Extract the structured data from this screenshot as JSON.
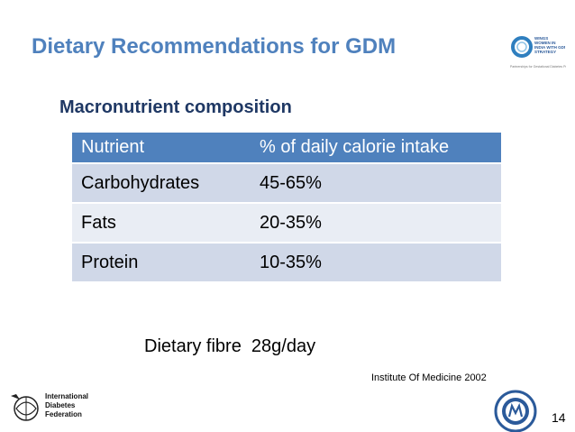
{
  "slide": {
    "title": "Dietary Recommendations for GDM",
    "subtitle": "Macronutrient composition",
    "table": {
      "headers": [
        "Nutrient",
        "% of daily calorie intake"
      ],
      "rows": [
        [
          "Carbohydrates",
          "45-65%"
        ],
        [
          "Fats",
          "20-35%"
        ],
        [
          "Protein",
          "10-35%"
        ]
      ]
    },
    "fibre_note": "Dietary fibre  28g/day",
    "source": "Institute Of Medicine 2002",
    "page_number": "14"
  },
  "logos": {
    "wings": {
      "lines": [
        "WINGS",
        "WOMEN IN",
        "INDIA WITH GDM",
        "STRATEGY"
      ],
      "caption": "Partnerships for Gestational Diabetes Prevention"
    },
    "idf": {
      "lines": [
        "International",
        "Diabetes",
        "Federation"
      ]
    }
  },
  "colors": {
    "title": "#4f81bd",
    "subtitle": "#1f3864",
    "table_header": "#4f81bd",
    "row_dark": "#d0d8e8",
    "row_light": "#e9edf4"
  }
}
